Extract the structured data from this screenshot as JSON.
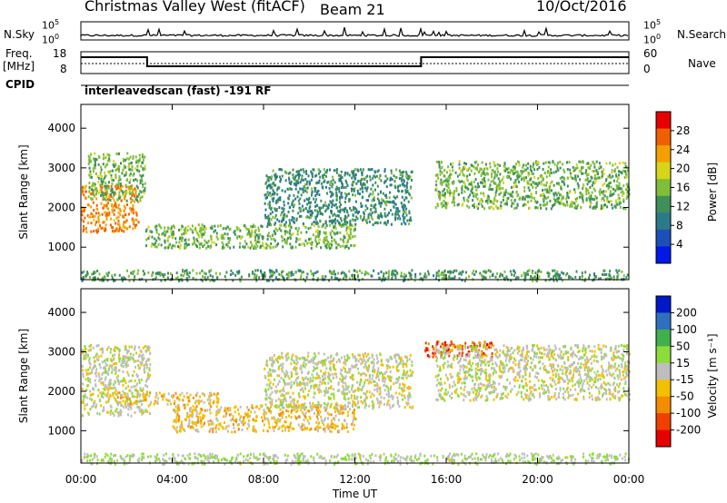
{
  "header": {
    "title": "Christmas Valley West (fitACF)",
    "beam": "Beam 21",
    "date": "10/Oct/2016"
  },
  "side_labels": {
    "nsky": "N.Sky",
    "nsearch": "N.Search",
    "freq_line1": "Freq.",
    "freq_line2": "[MHz]",
    "nave": "Nave",
    "cpid": "CPID",
    "cpid_text": "interleavedscan (fast) -191 RF"
  },
  "noise_panel": {
    "left_ticks": [
      "10^5",
      "10^0"
    ],
    "right_ticks": [
      "10^5",
      "10^0"
    ]
  },
  "freq_panel": {
    "left_ticks": [
      "18",
      "8"
    ],
    "right_ticks": [
      "60",
      "0"
    ]
  },
  "chart_data": [
    {
      "type": "heatmap",
      "panel": "power",
      "ylabel": "Slant Range [km]",
      "xlabel": "",
      "yticks": [
        "1000",
        "2000",
        "3000",
        "4000"
      ],
      "ylim": [
        180,
        4600
      ],
      "colorbar": {
        "label": "Power [dB]",
        "ticks": [
          "4",
          "8",
          "12",
          "16",
          "20",
          "24",
          "28"
        ],
        "range": [
          0,
          30
        ]
      },
      "regions": [
        {
          "t": [
            0.0,
            2.5
          ],
          "r": [
            1400,
            2600
          ],
          "value": 24
        },
        {
          "t": [
            0.3,
            2.8
          ],
          "r": [
            2200,
            3400
          ],
          "value": 14
        },
        {
          "t": [
            2.8,
            12.0
          ],
          "r": [
            1000,
            1600
          ],
          "value": 14
        },
        {
          "t": [
            8.0,
            14.5
          ],
          "r": [
            1600,
            3000
          ],
          "value": 10
        },
        {
          "t": [
            15.5,
            24.0
          ],
          "r": [
            2000,
            3200
          ],
          "value": 14
        },
        {
          "t": [
            0.0,
            24.0
          ],
          "r": [
            180,
            450
          ],
          "value": 12
        }
      ]
    },
    {
      "type": "heatmap",
      "panel": "velocity",
      "ylabel": "Slant Range [km]",
      "xlabel": "Time UT",
      "xticks": [
        "00:00",
        "04:00",
        "08:00",
        "12:00",
        "16:00",
        "20:00",
        "00:00"
      ],
      "yticks": [
        "1000",
        "2000",
        "3000",
        "4000"
      ],
      "ylim": [
        180,
        4600
      ],
      "xlim": [
        0,
        24
      ],
      "colorbar": {
        "label": "Velocity [m s⁻¹]",
        "ticks": [
          "200",
          "100",
          "50",
          "15",
          "-15",
          "-50",
          "-100",
          "-200"
        ],
        "range": [
          -250,
          250
        ]
      },
      "regions": [
        {
          "t": [
            0.0,
            3.0
          ],
          "r": [
            1400,
            3200
          ],
          "value": 0
        },
        {
          "t": [
            1.5,
            6.0
          ],
          "r": [
            1700,
            2000
          ],
          "value": -60
        },
        {
          "t": [
            4.0,
            12.0
          ],
          "r": [
            1000,
            1700
          ],
          "value": -60
        },
        {
          "t": [
            8.0,
            14.5
          ],
          "r": [
            1600,
            3000
          ],
          "value": 0
        },
        {
          "t": [
            15.0,
            18.0
          ],
          "r": [
            2900,
            3300
          ],
          "value": -180
        },
        {
          "t": [
            15.5,
            24.0
          ],
          "r": [
            1800,
            3200
          ],
          "value": 0
        },
        {
          "t": [
            0.0,
            24.0
          ],
          "r": [
            180,
            450
          ],
          "value": 30
        }
      ]
    }
  ],
  "colors": {
    "power_scale": [
      "#0018e8",
      "#1c4fb8",
      "#2a7a8a",
      "#3f8f5a",
      "#7fbe3a",
      "#d6d51a",
      "#f5a000",
      "#f06000",
      "#e60000"
    ],
    "velocity_scale": [
      "#e60000",
      "#f04000",
      "#f58c00",
      "#f3c000",
      "#bebebe",
      "#8ddc3a",
      "#3fb04a",
      "#2f6fc0",
      "#0018c8"
    ],
    "ground_scatter": "#bebebe"
  }
}
